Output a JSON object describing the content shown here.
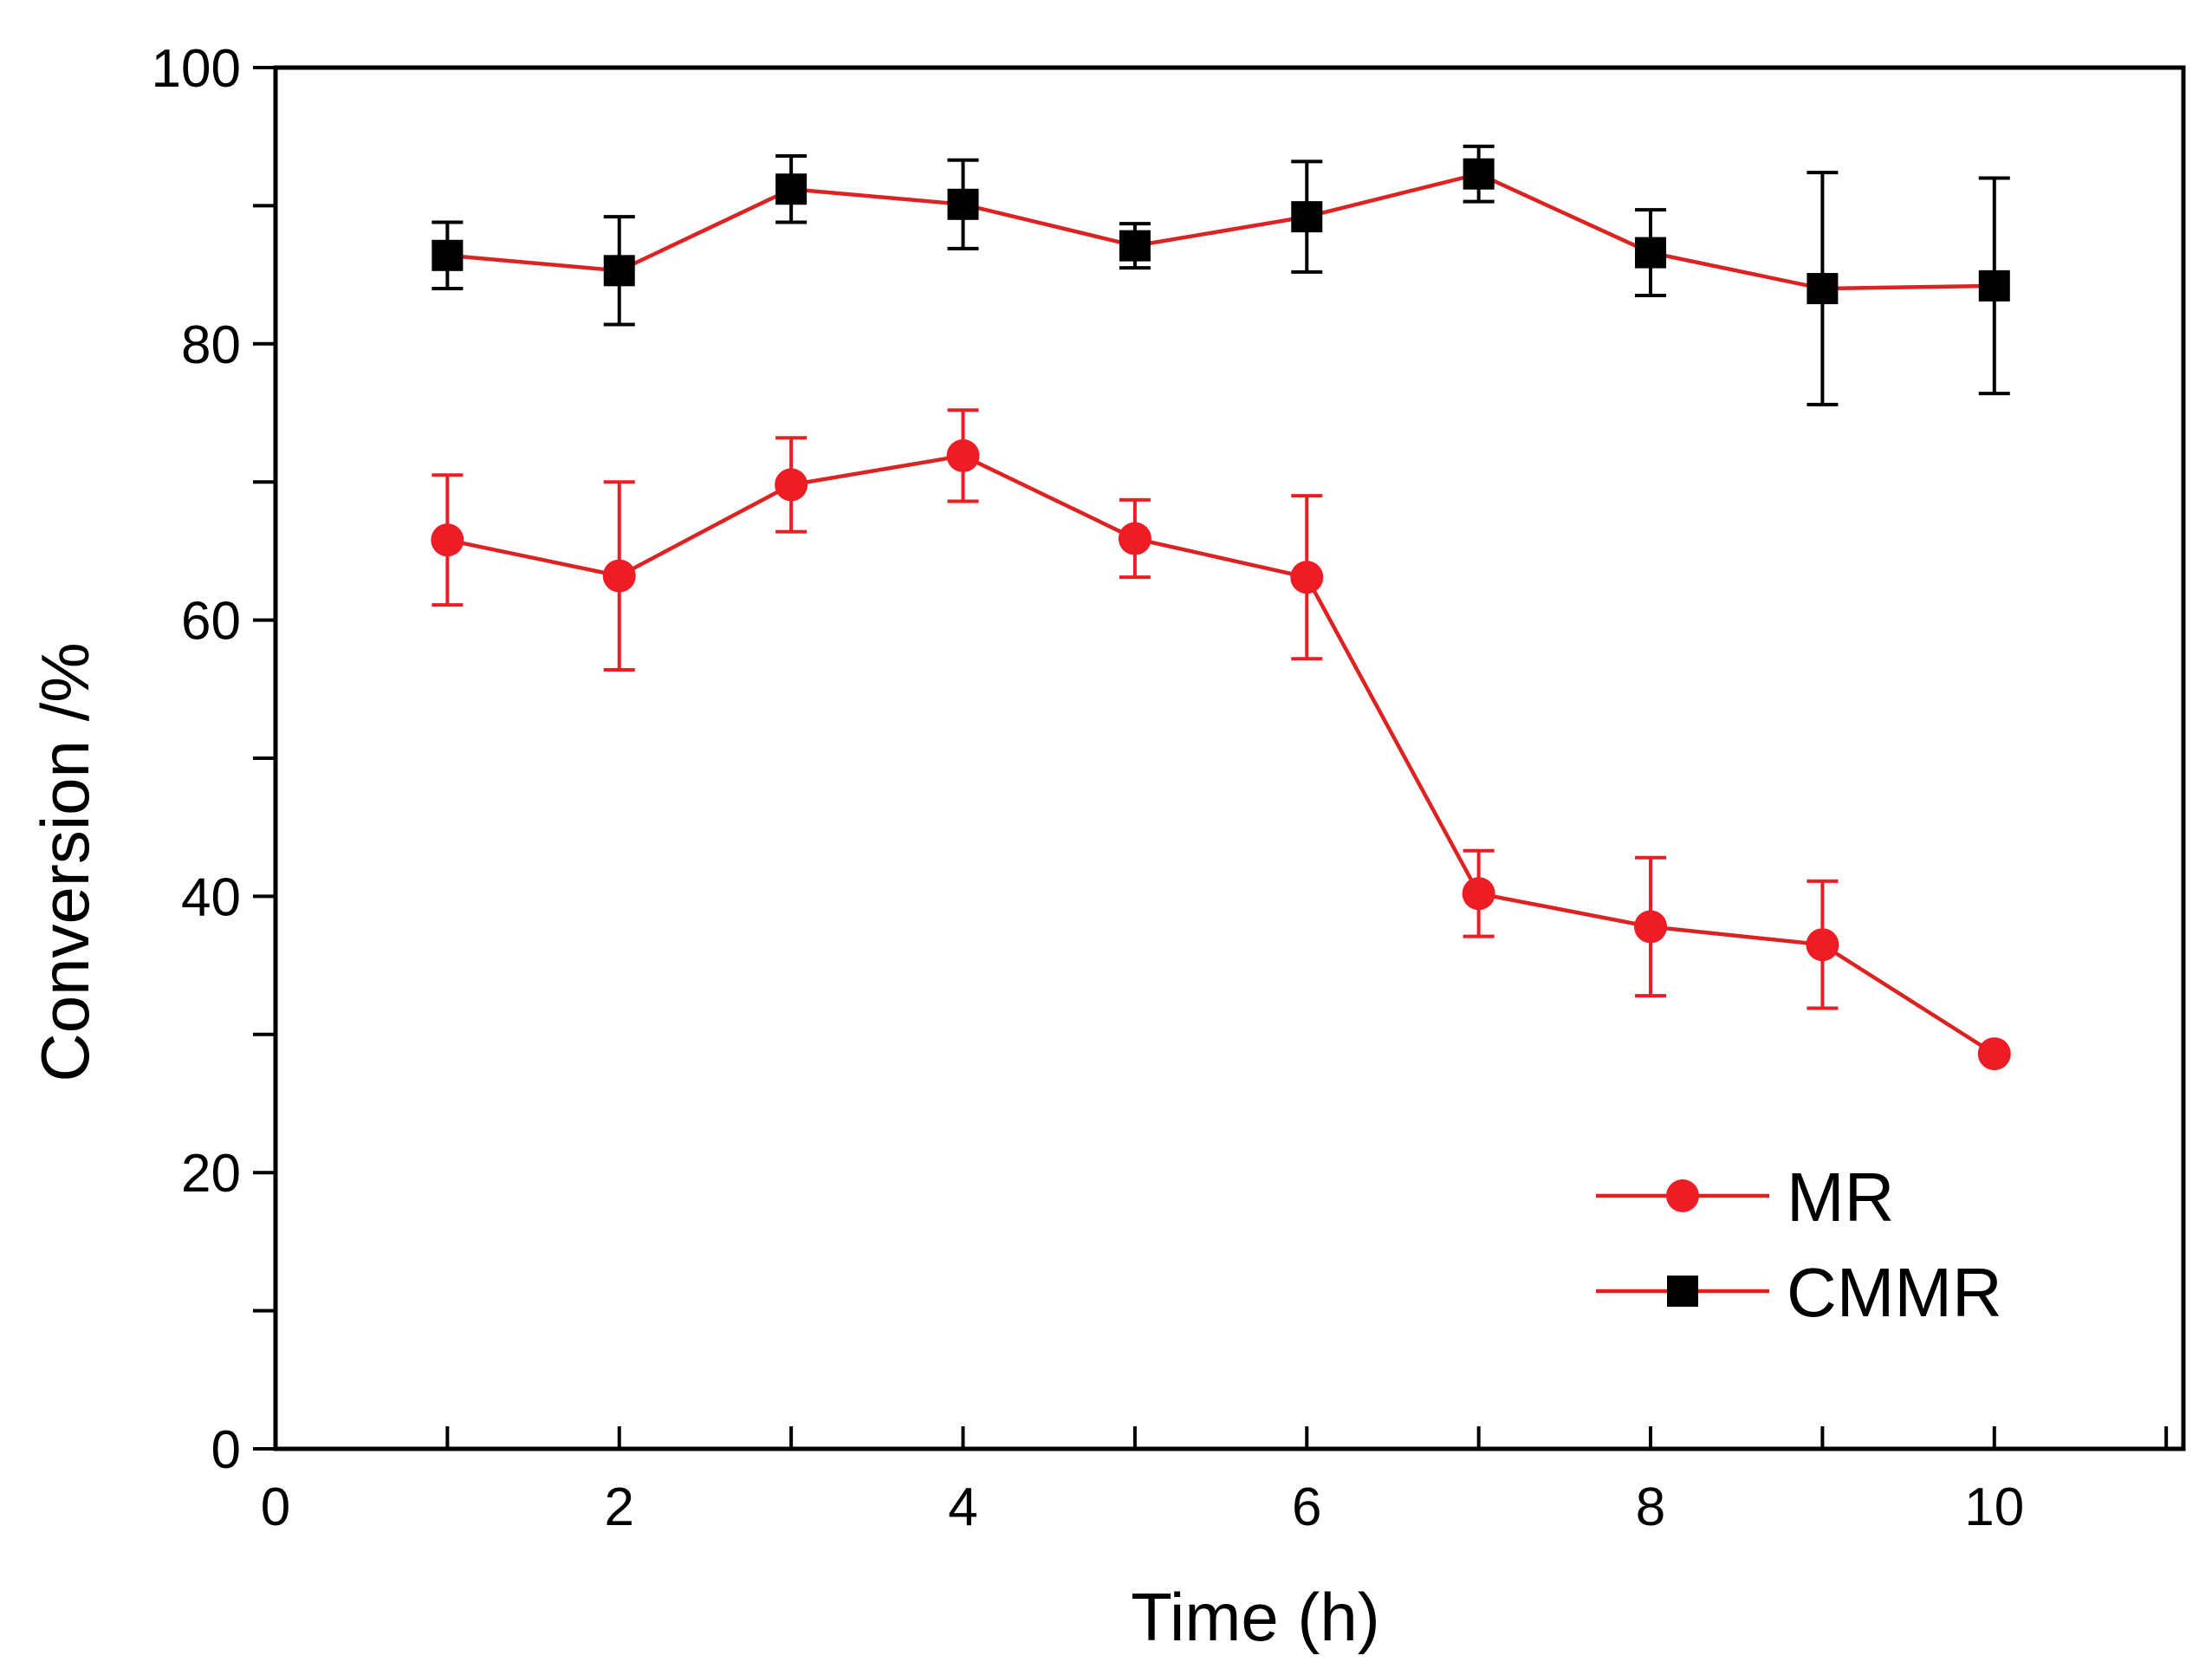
{
  "chart_data": {
    "type": "line",
    "xlabel": "Time (h)",
    "ylabel": "Conversion /%",
    "xlim": [
      0,
      11.1
    ],
    "ylim": [
      0,
      100
    ],
    "x_ticks": [
      0,
      2,
      4,
      6,
      8,
      10
    ],
    "x_tick_labels": [
      "0",
      "2",
      "4",
      "6",
      "8",
      "10"
    ],
    "y_ticks": [
      0,
      20,
      40,
      60,
      80,
      100
    ],
    "y_tick_labels": [
      "0",
      "20",
      "40",
      "60",
      "80",
      "100"
    ],
    "grid": false,
    "legend_position": "bottom-right",
    "x": [
      1,
      2,
      3,
      4,
      5,
      6,
      7,
      8,
      9,
      10
    ],
    "series": [
      {
        "name": "MR",
        "marker": "circle",
        "marker_color": "#ee1c24",
        "line_color": "#dd2222",
        "values": [
          65.8,
          63.2,
          69.8,
          71.9,
          65.9,
          63.1,
          40.2,
          37.8,
          36.5,
          28.6
        ],
        "error": [
          4.7,
          6.8,
          3.4,
          3.3,
          2.8,
          5.9,
          3.1,
          5.0,
          4.6,
          0
        ]
      },
      {
        "name": "CMMR",
        "marker": "square",
        "marker_color": "#000000",
        "line_color": "#dd2222",
        "values": [
          86.4,
          85.3,
          91.2,
          90.1,
          87.1,
          89.2,
          92.3,
          86.6,
          84.0,
          84.2
        ],
        "error": [
          2.4,
          3.9,
          2.4,
          3.2,
          1.6,
          4.0,
          2.0,
          3.1,
          8.4,
          7.8
        ]
      }
    ]
  }
}
